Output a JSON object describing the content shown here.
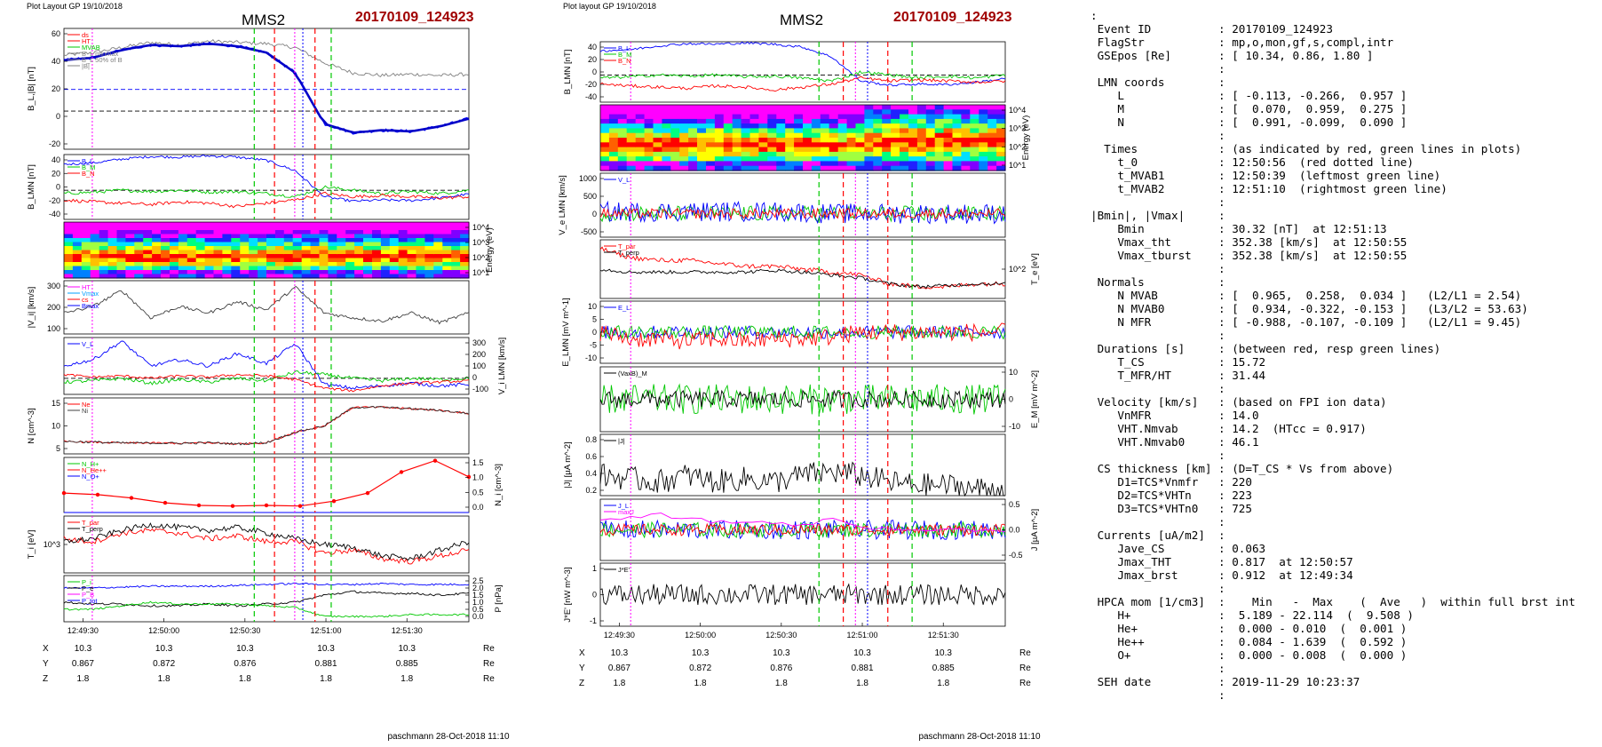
{
  "colors": {
    "blue": "#0000ff",
    "red": "#ff0000",
    "green": "#00c800",
    "black": "#000000",
    "gray": "#808080",
    "magenta": "#ff00ff",
    "title_red": "#a00000",
    "dark_red": "#8b0000"
  },
  "icons": {
    "marker_dot": "filled-circle-marker",
    "marker_diamond": "diamond-marker"
  },
  "left": {
    "header": "Plot Layout GP 19/10/2018",
    "spacecraft": "MMS2",
    "event": "20170109_124923",
    "footer": "paschmann 28-Oct-2018 11:10",
    "time_ticks": [
      "12:49:30",
      "12:50:00",
      "12:50:30",
      "12:51:00",
      "12:51:30"
    ],
    "ephem": {
      "rows": [
        {
          "label": "X",
          "values": [
            "10.3",
            "10.3",
            "10.3",
            "10.3",
            "10.3"
          ],
          "unit": "Re"
        },
        {
          "label": "Y",
          "values": [
            "0.867",
            "0.872",
            "0.876",
            "0.881",
            "0.885"
          ],
          "unit": "Re"
        },
        {
          "label": "Z",
          "values": [
            "1.8",
            "1.8",
            "1.8",
            "1.8",
            "1.8"
          ],
          "unit": "Re"
        }
      ]
    },
    "panels": [
      {
        "ylabel": "B_L,|B| [nT]",
        "yticks": [
          "60",
          "40",
          "20",
          "0",
          "-20"
        ],
        "legend": [
          "ds",
          "HT",
          "MVAB",
          "B_L minmax",
          "B_L 50% of B",
          "|B|"
        ]
      },
      {
        "ylabel": "B_LMN [nT]",
        "yticks": [
          "40",
          "20",
          "0",
          "-20",
          "-40"
        ],
        "legend": [
          "B_L",
          "B_M",
          "B_N"
        ]
      },
      {
        "ylabel": "Energy (eV)",
        "yticks": [
          "10^4",
          "10^3",
          "10^2",
          "10^1"
        ],
        "side": "right"
      },
      {
        "ylabel": "|V_i| [km/s]",
        "yticks": [
          "300",
          "200",
          "100"
        ],
        "legend": [
          "HT",
          "Vmax",
          "cs",
          "Bmax"
        ]
      },
      {
        "ylabel": "V_i LMN [km/s]",
        "yticks": [
          "300",
          "200",
          "100",
          "0",
          "-100"
        ],
        "side": "right",
        "legend": [
          "V_L"
        ]
      },
      {
        "ylabel": "N [cm^-3]",
        "yticks": [
          "15",
          "10",
          "5"
        ],
        "legend": [
          "Ne",
          "Ni"
        ]
      },
      {
        "ylabel": "N_i [cm^-3]",
        "yticks": [
          "1.5",
          "1.0",
          "0.5",
          "0.0"
        ],
        "side": "right",
        "legend": [
          "N_H+",
          "N_He++",
          "N_O+"
        ]
      },
      {
        "ylabel": "T_i [eV]",
        "yticks": [
          "10^3"
        ],
        "legend": [
          "T_par",
          "T_perp"
        ]
      },
      {
        "ylabel": "P [nPa]",
        "yticks": [
          "2.5",
          "2.0",
          "1.5",
          "1.0",
          "0.5",
          "0.0"
        ],
        "side": "right",
        "legend": [
          "P_i",
          "P_e",
          "P_B",
          "P_tot"
        ]
      }
    ]
  },
  "middle": {
    "header": "Plot layout GP 19/10/2018",
    "spacecraft": "MMS2",
    "event": "20170109_124923",
    "footer": "paschmann 28-Oct-2018 11:10",
    "time_ticks": [
      "12:49:30",
      "12:50:00",
      "12:50:30",
      "12:51:00",
      "12:51:30"
    ],
    "ephem": {
      "rows": [
        {
          "label": "X",
          "values": [
            "10.3",
            "10.3",
            "10.3",
            "10.3",
            "10.3"
          ],
          "unit": "Re"
        },
        {
          "label": "Y",
          "values": [
            "0.867",
            "0.872",
            "0.876",
            "0.881",
            "0.885"
          ],
          "unit": "Re"
        },
        {
          "label": "Z",
          "values": [
            "1.8",
            "1.8",
            "1.8",
            "1.8",
            "1.8"
          ],
          "unit": "Re"
        }
      ]
    },
    "panels": [
      {
        "ylabel": "B_LMN [nT]",
        "yticks": [
          "40",
          "20",
          "0",
          "-20",
          "-40"
        ],
        "legend": [
          "B_L",
          "B_M",
          "B_N"
        ]
      },
      {
        "ylabel": "Energy (eV)",
        "yticks": [
          "10^4",
          "10^3",
          "10^2",
          "10^1"
        ],
        "side": "right"
      },
      {
        "ylabel": "V_e LMN [km/s]",
        "yticks": [
          "1000",
          "500",
          "0",
          "-500"
        ],
        "legend": [
          "V_L"
        ]
      },
      {
        "ylabel": "T_e [eV]",
        "yticks": [
          "10^2"
        ],
        "side": "right",
        "legend": [
          "T_par",
          "T_perp"
        ]
      },
      {
        "ylabel": "E_LMN [mV m^-1]",
        "yticks": [
          "10",
          "5",
          "0",
          "-5",
          "-10"
        ],
        "legend": [
          "E_L"
        ]
      },
      {
        "ylabel": "E_M [mV m^-2]",
        "yticks": [
          "10",
          "0",
          "-10"
        ],
        "side": "right",
        "legend": [
          "(VaxB)_M"
        ]
      },
      {
        "ylabel": "|J| [µA m^-2]",
        "yticks": [
          "0.8",
          "0.6",
          "0.4",
          "0.2"
        ],
        "legend": [
          "|J|"
        ]
      },
      {
        "ylabel": "J [µA m^-2]",
        "yticks": [
          "0.5",
          "0.0",
          "-0.5"
        ],
        "side": "right",
        "legend": [
          "J_L",
          "maxJ"
        ]
      },
      {
        "ylabel": "J*E' [nW m^-3]",
        "yticks": [
          "1",
          "0",
          "-1"
        ],
        "legend": [
          "J*E'"
        ]
      }
    ]
  },
  "info_lines": [
    ":",
    " Event ID          : 20170109_124923",
    " FlagStr           : mp,o,mon,gf,s,compl,intr",
    " GSEpos [Re]       : [ 10.34, 0.86, 1.80 ]",
    "                   :",
    " LMN coords        :",
    "    L              : [ -0.113, -0.266,  0.957 ]",
    "    M              : [  0.070,  0.959,  0.275 ]",
    "    N              : [  0.991, -0.099,  0.090 ]",
    "                   :",
    "  Times            : (as indicated by red, green lines in plots)",
    "    t_0            : 12:50:56  (red dotted line)",
    "    t_MVAB1        : 12:50:39  (leftmost green line)",
    "    t_MVAB2        : 12:51:10  (rightmost green line)",
    "                   :",
    "|Bmin|, |Vmax|     :",
    "    Bmin           : 30.32 [nT]  at 12:51:13",
    "    Vmax_tht       : 352.38 [km/s]  at 12:50:55",
    "    Vmax_tburst    : 352.38 [km/s]  at 12:50:55",
    "                   :",
    " Normals           :",
    "    N MVAB         : [  0.965,  0.258,  0.034 ]   (L2/L1 = 2.54)",
    "    N MVAB0        : [  0.934, -0.322, -0.153 ]   (L3/L2 = 53.63)",
    "    N MFR          : [ -0.988, -0.107, -0.109 ]   (L2/L1 = 9.45)",
    "                   :",
    " Durations [s]     : (between red, resp green lines)",
    "    T_CS           : 15.72",
    "    T_MFR/HT       : 31.44",
    "                   :",
    " Velocity [km/s]   : (based on FPI ion data)",
    "    VnMFR          : 14.0",
    "    VHT.Nmvab      : 14.2  (HTcc = 0.917)",
    "    VHT.Nmvab0     : 46.1",
    "                   :",
    " CS thickness [km] : (D=T_CS * Vs from above)",
    "    D1=TCS*Vnmfr   : 220",
    "    D2=TCS*VHTn    : 223",
    "    D3=TCS*VHTn0   : 725",
    "                   :",
    " Currents [uA/m2]  :",
    "    Jave_CS        : 0.063",
    "    Jmax_THT       : 0.817  at 12:50:57",
    "    Jmax_brst      : 0.912  at 12:49:34",
    "                   :",
    " HPCA mom [1/cm3]  :    Min   -  Max    (  Ave   )  within full brst int",
    "    H+             :  5.189 - 22.114  (  9.508 )",
    "    He+            :  0.000 - 0.010  (  0.001 )",
    "    He++           :  0.084 - 1.639  (  0.592 )",
    "    O+             :  0.000 - 0.008  (  0.000 )",
    "                   :",
    " SEH date          : 2019-11-29 10:23:37",
    "                   :"
  ],
  "chart_data": [
    {
      "type": "line",
      "title": "MMS2",
      "subtitle": "20170109_124923",
      "x_ticks": [
        "12:49:30",
        "12:50:00",
        "12:50:30",
        "12:51:00",
        "12:51:30"
      ],
      "panels": [
        {
          "ylabel": "B_L,|B| [nT]",
          "ylim": [
            -30,
            65
          ],
          "series": [
            {
              "name": "|B|",
              "values": [
                44,
                46,
                50,
                54,
                52,
                55,
                54,
                53,
                50,
                38,
                30,
                28,
                29,
                28,
                29
              ]
            },
            {
              "name": "B_L",
              "values": [
                40,
                42,
                48,
                52,
                51,
                53,
                51,
                46,
                30,
                -10,
                -17,
                -15,
                -16,
                -12,
                -6
              ]
            }
          ]
        },
        {
          "ylabel": "B_LMN [nT]",
          "ylim": [
            -45,
            55
          ],
          "series": [
            {
              "name": "B_L",
              "values": [
                40,
                42,
                48,
                52,
                51,
                53,
                51,
                46,
                30,
                -10,
                -17,
                -15,
                -16,
                -12,
                -6
              ]
            },
            {
              "name": "B_M",
              "values": [
                -5,
                -3,
                0,
                -2,
                0,
                -3,
                -2,
                -5,
                -10,
                5,
                0,
                -5,
                -2,
                -5,
                0
              ]
            },
            {
              "name": "B_N",
              "values": [
                -15,
                -18,
                -20,
                -22,
                -18,
                -20,
                -25,
                -20,
                -15,
                -5,
                -10,
                -8,
                -10,
                -12,
                -10
              ]
            }
          ]
        },
        {
          "ylabel": "|V_i| [km/s]",
          "ylim": [
            50,
            380
          ],
          "series": [
            {
              "name": "|V_i|",
              "values": [
                180,
                220,
                320,
                150,
                220,
                180,
                250,
                200,
                340,
                180,
                150,
                130,
                180,
                120,
                180
              ]
            }
          ]
        },
        {
          "ylabel": "V_i LMN [km/s]",
          "ylim": [
            -130,
            330
          ],
          "series": [
            {
              "name": "V_L",
              "values": [
                100,
                150,
                300,
                100,
                150,
                100,
                200,
                120,
                280,
                -50,
                -80,
                -60,
                -40,
                -60,
                -50
              ]
            }
          ]
        },
        {
          "ylabel": "N [cm^-3]",
          "ylim": [
            2,
            20
          ],
          "series": [
            {
              "name": "Ni",
              "values": [
                6,
                5.8,
                5.5,
                5.5,
                5.4,
                5.6,
                5.2,
                5.6,
                9,
                11,
                17,
                17,
                16.5,
                16,
                15
              ]
            }
          ]
        },
        {
          "ylabel": "N_i [cm^-3]",
          "ylim": [
            0,
            1.7
          ],
          "series": [
            {
              "name": "N_He++",
              "values": [
                0.6,
                0.55,
                0.45,
                0.3,
                0.22,
                0.2,
                0.22,
                0.2,
                0.35,
                0.6,
                1.25,
                1.6,
                1.1
              ]
            }
          ]
        },
        {
          "ylabel": "P [nPa]",
          "ylim": [
            0,
            2.6
          ],
          "series": [
            {
              "name": "P_tot",
              "values": [
                1.9,
                1.9,
                1.95,
                2.0,
                2.0,
                2.0,
                2.05,
                2.1,
                2.15,
                2.1,
                2.1,
                2.15,
                2.1,
                2.1,
                2.1
              ]
            }
          ]
        }
      ]
    },
    {
      "type": "line",
      "title": "MMS2",
      "subtitle": "20170109_124923",
      "x_ticks": [
        "12:49:30",
        "12:50:00",
        "12:50:30",
        "12:51:00",
        "12:51:30"
      ],
      "panels": [
        {
          "ylabel": "B_LMN [nT]",
          "ylim": [
            -45,
            55
          ],
          "series": [
            {
              "name": "B_L",
              "values": [
                40,
                42,
                48,
                52,
                51,
                53,
                51,
                46,
                30,
                -10,
                -17,
                -15,
                -16,
                -12,
                -6
              ]
            }
          ]
        },
        {
          "ylabel": "|J| [µA m^-2]",
          "ylim": [
            0,
            0.9
          ],
          "series": [
            {
              "name": "|J|",
              "values": [
                0.3,
                0.25,
                0.2,
                0.3,
                0.2,
                0.25,
                0.2,
                0.3,
                0.35,
                0.3,
                0.2,
                0.15,
                0.15,
                0.1,
                0.1
              ]
            }
          ]
        }
      ]
    }
  ]
}
